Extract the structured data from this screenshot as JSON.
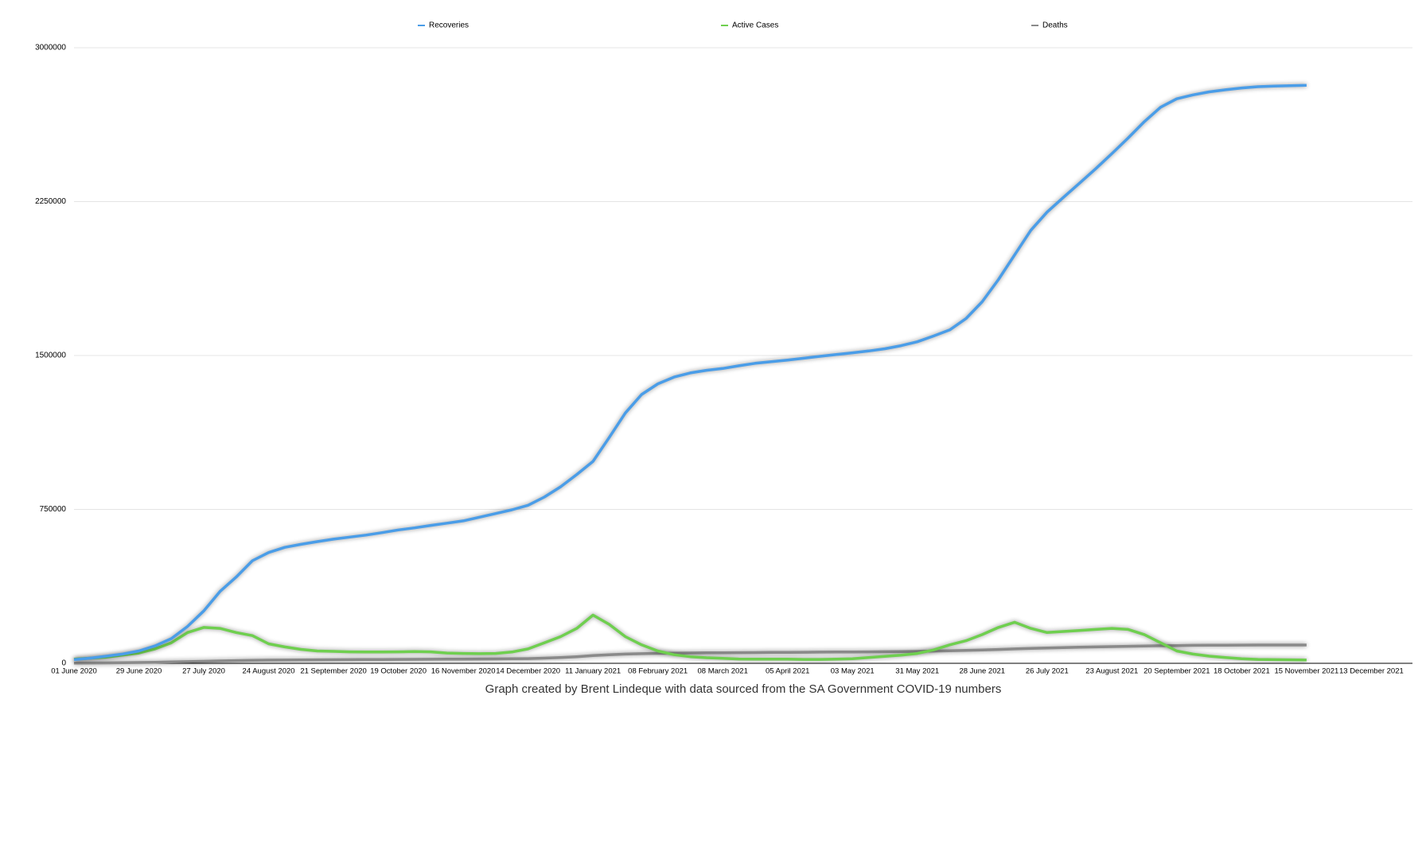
{
  "chart_data": {
    "type": "line",
    "caption": "Graph created by Brent Lindeque with data sourced from the SA Government COVID-19 numbers",
    "categories": [
      "01 June 2020",
      null,
      null,
      null,
      "29 June 2020",
      null,
      null,
      null,
      "27 July 2020",
      null,
      null,
      null,
      "24 August 2020",
      null,
      null,
      null,
      "21 September 2020",
      null,
      null,
      null,
      "19 October 2020",
      null,
      null,
      null,
      "16 November 2020",
      null,
      null,
      null,
      "14 December 2020",
      null,
      null,
      null,
      "11 January 2021",
      null,
      null,
      null,
      "08 February 2021",
      null,
      null,
      null,
      "08 March 2021",
      null,
      null,
      null,
      "05 April 2021",
      null,
      null,
      null,
      "03 May 2021",
      null,
      null,
      null,
      "31 May 2021",
      null,
      null,
      null,
      "28 June 2021",
      null,
      null,
      null,
      "26 July 2021",
      null,
      null,
      null,
      "23 August 2021",
      null,
      null,
      null,
      "20 September 2021",
      null,
      null,
      null,
      "18 October 2021",
      null,
      null,
      null,
      "15 November 2021",
      null,
      null,
      null,
      "13 December 2021"
    ],
    "series": [
      {
        "name": "Recoveries",
        "color": "#4a9de8",
        "values": [
          18000,
          25000,
          35000,
          45000,
          60000,
          85000,
          120000,
          180000,
          255000,
          350000,
          420000,
          500000,
          540000,
          565000,
          580000,
          593000,
          605000,
          615000,
          625000,
          637000,
          650000,
          660000,
          672000,
          683000,
          694000,
          712000,
          730000,
          748000,
          770000,
          810000,
          860000,
          920000,
          984000,
          1100000,
          1220000,
          1310000,
          1362000,
          1395000,
          1415000,
          1428000,
          1437000,
          1450000,
          1462000,
          1470000,
          1478000,
          1487000,
          1496000,
          1505000,
          1513000,
          1522000,
          1533000,
          1548000,
          1567000,
          1595000,
          1625000,
          1680000,
          1762000,
          1870000,
          1990000,
          2110000,
          2199000,
          2270000,
          2340000,
          2410000,
          2484000,
          2560000,
          2640000,
          2710000,
          2751000,
          2770000,
          2785000,
          2795000,
          2804000,
          2810000,
          2813000,
          2815000,
          2817000,
          null,
          null,
          null,
          null
        ]
      },
      {
        "name": "Active Cases",
        "color": "#6fcf4f",
        "values": [
          20000,
          25000,
          30000,
          40000,
          50000,
          70000,
          100000,
          150000,
          175000,
          170000,
          150000,
          135000,
          95000,
          80000,
          68000,
          60000,
          58000,
          56000,
          55000,
          55000,
          56000,
          57000,
          56000,
          50000,
          48000,
          47000,
          48000,
          55000,
          70000,
          100000,
          130000,
          170000,
          235000,
          190000,
          130000,
          90000,
          60000,
          42000,
          32000,
          27000,
          24000,
          21000,
          20000,
          20000,
          20000,
          19000,
          19000,
          20000,
          22000,
          28000,
          34000,
          40000,
          48000,
          65000,
          90000,
          110000,
          140000,
          175000,
          200000,
          170000,
          150000,
          155000,
          160000,
          165000,
          170000,
          165000,
          140000,
          100000,
          60000,
          45000,
          35000,
          28000,
          22000,
          19000,
          18000,
          17000,
          16000,
          null,
          null,
          null,
          null
        ]
      },
      {
        "name": "Deaths",
        "color": "#8a8a8a",
        "values": [
          1000,
          1500,
          2000,
          3000,
          4000,
          5000,
          6500,
          8000,
          9500,
          11500,
          13000,
          14500,
          15500,
          16000,
          16500,
          17000,
          17500,
          18000,
          18500,
          18700,
          19000,
          19300,
          19600,
          20000,
          20500,
          21000,
          21500,
          22000,
          23000,
          25000,
          28000,
          32000,
          38000,
          42000,
          45000,
          47000,
          48500,
          49500,
          50500,
          51000,
          51500,
          52000,
          52500,
          53000,
          53500,
          54000,
          54500,
          55000,
          55500,
          56000,
          56500,
          57000,
          58000,
          59500,
          61000,
          63000,
          65000,
          67500,
          70000,
          72500,
          74500,
          76500,
          78500,
          80000,
          81500,
          83000,
          84500,
          85500,
          86500,
          87500,
          88000,
          88500,
          88800,
          89000,
          89100,
          89200,
          89300,
          null,
          null,
          null,
          null
        ]
      }
    ],
    "ylim": [
      0,
      3000000
    ],
    "yticks": [
      0,
      750000,
      1500000,
      2250000,
      3000000
    ],
    "grid": true,
    "legend": "top"
  }
}
